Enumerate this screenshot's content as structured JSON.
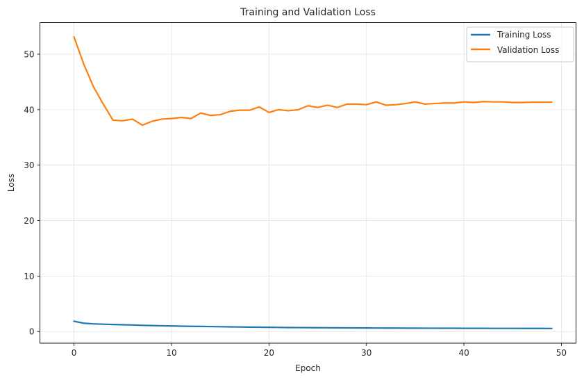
{
  "chart_data": {
    "type": "line",
    "title": "Training and Validation Loss",
    "xlabel": "Epoch",
    "ylabel": "Loss",
    "xlim": [
      -3.5,
      51.5
    ],
    "ylim": [
      -2.1,
      55.7
    ],
    "xticks": [
      0,
      10,
      20,
      30,
      40,
      50
    ],
    "xtick_labels": [
      "0",
      "10",
      "20",
      "30",
      "40",
      "50"
    ],
    "yticks": [
      0,
      10,
      20,
      30,
      40,
      50
    ],
    "ytick_labels": [
      "0",
      "10",
      "20",
      "30",
      "40",
      "50"
    ],
    "grid": true,
    "legend_position": "top-right",
    "x": [
      0,
      1,
      2,
      3,
      4,
      5,
      6,
      7,
      8,
      9,
      10,
      11,
      12,
      13,
      14,
      15,
      16,
      17,
      18,
      19,
      20,
      21,
      22,
      23,
      24,
      25,
      26,
      27,
      28,
      29,
      30,
      31,
      32,
      33,
      34,
      35,
      36,
      37,
      38,
      39,
      40,
      41,
      42,
      43,
      44,
      45,
      46,
      47,
      48,
      49
    ],
    "series": [
      {
        "name": "Training Loss",
        "color": "#1f77b4",
        "values": [
          1.85,
          1.5,
          1.38,
          1.32,
          1.27,
          1.22,
          1.18,
          1.12,
          1.08,
          1.04,
          1.0,
          0.97,
          0.94,
          0.92,
          0.9,
          0.87,
          0.84,
          0.82,
          0.8,
          0.78,
          0.76,
          0.74,
          0.72,
          0.71,
          0.7,
          0.69,
          0.68,
          0.67,
          0.66,
          0.65,
          0.64,
          0.63,
          0.62,
          0.62,
          0.61,
          0.61,
          0.6,
          0.6,
          0.59,
          0.59,
          0.58,
          0.58,
          0.58,
          0.57,
          0.57,
          0.57,
          0.56,
          0.56,
          0.56,
          0.55
        ]
      },
      {
        "name": "Validation Loss",
        "color": "#ff7f0e",
        "values": [
          53.1,
          48.2,
          44.1,
          41.0,
          38.1,
          38.0,
          38.3,
          37.2,
          37.9,
          38.3,
          38.4,
          38.6,
          38.4,
          39.4,
          38.95,
          39.1,
          39.7,
          39.9,
          39.9,
          40.5,
          39.5,
          40.0,
          39.8,
          40.0,
          40.7,
          40.4,
          40.8,
          40.4,
          41.0,
          41.0,
          40.9,
          41.4,
          40.8,
          40.9,
          41.1,
          41.4,
          41.0,
          41.1,
          41.2,
          41.2,
          41.4,
          41.3,
          41.45,
          41.4,
          41.4,
          41.3,
          41.3,
          41.35,
          41.35,
          41.35
        ]
      }
    ]
  }
}
